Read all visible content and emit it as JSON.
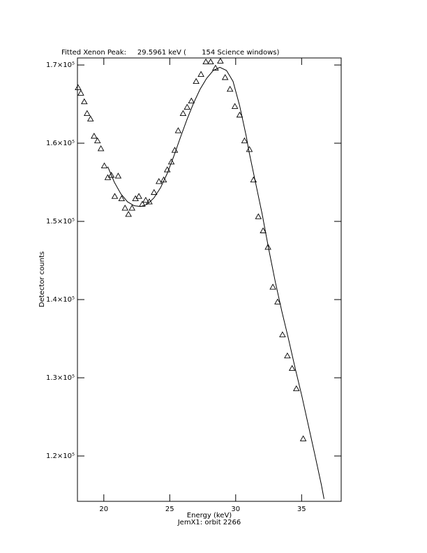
{
  "chart_data": {
    "type": "scatter",
    "title": "Fitted Xenon Peak:     29.5961 keV (       154 Science windows)",
    "x_label": "Energy (keV)",
    "subtitle": "JemX1: orbit 2266",
    "y_label": "Detector counts",
    "xlim": [
      18,
      38
    ],
    "xticks": [
      20,
      25,
      30,
      35
    ],
    "ylim": [
      114200,
      170900
    ],
    "yticks": [
      {
        "value": 120000,
        "label": "1.2×10⁵"
      },
      {
        "value": 130000,
        "label": "1.3×10⁵"
      },
      {
        "value": 140000,
        "label": "1.4×10⁵"
      },
      {
        "value": 150000,
        "label": "1.5×10⁵"
      },
      {
        "value": 160000,
        "label": "1.6×10⁵"
      },
      {
        "value": 170000,
        "label": "1.7×10⁵"
      }
    ],
    "series": [
      {
        "type": "scatter",
        "color": "#000000",
        "x": [
          18.05,
          18.26,
          18.52,
          18.73,
          18.99,
          19.26,
          19.52,
          19.78,
          20.04,
          20.3,
          20.57,
          20.83,
          21.09,
          21.35,
          21.61,
          21.87,
          22.14,
          22.4,
          22.66,
          22.92,
          23.18,
          23.45,
          23.81,
          24.18,
          24.54,
          24.81,
          25.12,
          25.38,
          25.64,
          26.01,
          26.32,
          26.64,
          27.0,
          27.37,
          27.74,
          28.1,
          28.47,
          28.84,
          29.2,
          29.57,
          29.94,
          30.3,
          30.67,
          31.04,
          31.35,
          31.72,
          32.08,
          32.45,
          32.82,
          33.18,
          33.55,
          33.92,
          34.28,
          34.6,
          35.12
        ],
        "values": [
          167100,
          166400,
          165300,
          163800,
          163100,
          160900,
          160300,
          159300,
          157100,
          155600,
          155900,
          153200,
          155800,
          152900,
          151700,
          150900,
          151700,
          152900,
          153200,
          152200,
          152700,
          152500,
          153700,
          155100,
          155300,
          156600,
          157600,
          159100,
          161600,
          163800,
          164600,
          165400,
          167900,
          168800,
          170400,
          170400,
          169600,
          170500,
          168400,
          166900,
          164700,
          163600,
          160300,
          159200,
          155300,
          150600,
          148800,
          146700,
          141600,
          139700,
          135500,
          132800,
          131200,
          128600,
          122200
        ]
      },
      {
        "type": "line",
        "color": "#000000",
        "x": [
          20.3,
          20.8,
          21.3,
          21.8,
          22.3,
          22.8,
          23.3,
          23.8,
          24.3,
          24.8,
          25.3,
          25.8,
          26.3,
          26.8,
          27.3,
          27.8,
          28.3,
          28.8,
          29.3,
          29.8,
          30.3,
          30.8,
          31.0,
          31.5,
          32.0,
          32.5,
          33.0,
          33.5,
          34.0,
          34.5,
          35.0,
          35.5,
          36.0,
          36.5,
          36.7
        ],
        "values": [
          157000,
          155000,
          153500,
          152500,
          152000,
          151900,
          152200,
          153000,
          154300,
          156100,
          158300,
          160700,
          163000,
          165100,
          166900,
          168300,
          169300,
          169700,
          169300,
          167900,
          164800,
          160900,
          159000,
          155000,
          151000,
          146500,
          142300,
          138500,
          135000,
          131300,
          127800,
          124000,
          120200,
          116300,
          114500
        ]
      }
    ]
  }
}
